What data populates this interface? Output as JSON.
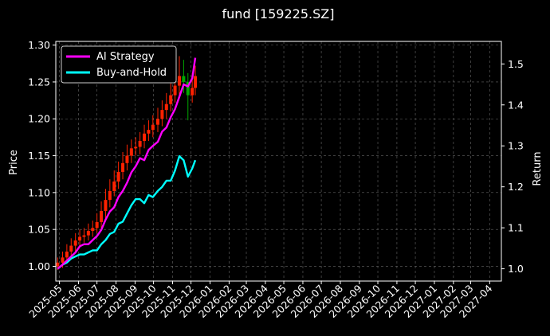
{
  "chart_data": {
    "type": "line",
    "title": "fund [159225.SZ]",
    "xlabel": "",
    "ylabel_left": "Price",
    "ylabel_right": "Return",
    "x_ticks": [
      "2025-05",
      "2025-06",
      "2025-07",
      "2025-08",
      "2025-09",
      "2025-10",
      "2025-11",
      "2025-12",
      "2026-01",
      "2026-02",
      "2026-03",
      "2026-04",
      "2026-05",
      "2026-06",
      "2026-07",
      "2026-08",
      "2026-09",
      "2026-10",
      "2026-11",
      "2026-12",
      "2027-01",
      "2027-02",
      "2027-03",
      "2027-04"
    ],
    "x_range": [
      "2025-04-25",
      "2027-04-20"
    ],
    "y_left": {
      "ticks": [
        1.0,
        1.05,
        1.1,
        1.15,
        1.2,
        1.25,
        1.3
      ],
      "range": [
        0.98,
        1.305
      ]
    },
    "y_right": {
      "ticks": [
        1.0,
        1.1,
        1.2,
        1.3,
        1.4,
        1.5
      ],
      "range": [
        0.97,
        1.555
      ]
    },
    "grid": true,
    "legend": {
      "placement": "top-left",
      "entries": [
        "AI Strategy",
        "Buy-and-Hold"
      ]
    },
    "colors": {
      "ai": "#ff00ff",
      "bh": "#00ffff",
      "up": "#ff2200",
      "down": "#00aa00",
      "grid": "#666666"
    },
    "series": [
      {
        "name": "AI Strategy",
        "axis": "right",
        "x": [
          "2025-04-28",
          "2025-05-06",
          "2025-05-13",
          "2025-05-20",
          "2025-05-27",
          "2025-06-03",
          "2025-06-10",
          "2025-06-17",
          "2025-06-24",
          "2025-07-01",
          "2025-07-08",
          "2025-07-15",
          "2025-07-22",
          "2025-07-29",
          "2025-08-05",
          "2025-08-12",
          "2025-08-19",
          "2025-08-26",
          "2025-09-02",
          "2025-09-09",
          "2025-09-16",
          "2025-09-23",
          "2025-09-30",
          "2025-10-08",
          "2025-10-15",
          "2025-10-22",
          "2025-10-29",
          "2025-11-05",
          "2025-11-12",
          "2025-11-19",
          "2025-11-26",
          "2025-12-03",
          "2025-12-08"
        ],
        "y": [
          1.0,
          1.01,
          1.02,
          1.03,
          1.04,
          1.055,
          1.06,
          1.06,
          1.07,
          1.08,
          1.095,
          1.12,
          1.14,
          1.15,
          1.175,
          1.19,
          1.21,
          1.235,
          1.25,
          1.27,
          1.265,
          1.29,
          1.3,
          1.31,
          1.335,
          1.345,
          1.37,
          1.39,
          1.42,
          1.45,
          1.445,
          1.465,
          1.515
        ]
      },
      {
        "name": "Buy-and-Hold",
        "axis": "right",
        "x": [
          "2025-04-28",
          "2025-05-06",
          "2025-05-13",
          "2025-05-20",
          "2025-05-27",
          "2025-06-03",
          "2025-06-10",
          "2025-06-17",
          "2025-06-24",
          "2025-07-01",
          "2025-07-08",
          "2025-07-15",
          "2025-07-22",
          "2025-07-29",
          "2025-08-05",
          "2025-08-12",
          "2025-08-19",
          "2025-08-26",
          "2025-09-02",
          "2025-09-09",
          "2025-09-16",
          "2025-09-23",
          "2025-09-30",
          "2025-10-08",
          "2025-10-15",
          "2025-10-22",
          "2025-10-29",
          "2025-11-05",
          "2025-11-12",
          "2025-11-19",
          "2025-11-26",
          "2025-12-03",
          "2025-12-08"
        ],
        "y": [
          1.0,
          1.01,
          1.015,
          1.025,
          1.03,
          1.035,
          1.035,
          1.04,
          1.045,
          1.045,
          1.06,
          1.07,
          1.085,
          1.09,
          1.11,
          1.115,
          1.135,
          1.155,
          1.17,
          1.17,
          1.16,
          1.18,
          1.175,
          1.19,
          1.2,
          1.215,
          1.215,
          1.24,
          1.275,
          1.265,
          1.225,
          1.245,
          1.265
        ]
      },
      {
        "name": "",
        "type": "candlestick",
        "axis": "left",
        "x": [
          "2025-04-28",
          "2025-05-06",
          "2025-05-13",
          "2025-05-20",
          "2025-05-27",
          "2025-06-03",
          "2025-06-10",
          "2025-06-17",
          "2025-06-24",
          "2025-07-01",
          "2025-07-08",
          "2025-07-15",
          "2025-07-22",
          "2025-07-29",
          "2025-08-05",
          "2025-08-12",
          "2025-08-19",
          "2025-08-26",
          "2025-09-02",
          "2025-09-09",
          "2025-09-16",
          "2025-09-23",
          "2025-09-30",
          "2025-10-08",
          "2025-10-15",
          "2025-10-22",
          "2025-10-29",
          "2025-11-05",
          "2025-11-12",
          "2025-11-19",
          "2025-11-26",
          "2025-12-03",
          "2025-12-08"
        ],
        "open": [
          1.0,
          1.005,
          1.012,
          1.02,
          1.028,
          1.035,
          1.04,
          1.042,
          1.048,
          1.052,
          1.06,
          1.075,
          1.09,
          1.102,
          1.115,
          1.128,
          1.14,
          1.15,
          1.16,
          1.162,
          1.17,
          1.18,
          1.185,
          1.192,
          1.2,
          1.212,
          1.22,
          1.232,
          1.245,
          1.258,
          1.25,
          1.232,
          1.242
        ],
        "close": [
          1.005,
          1.012,
          1.02,
          1.028,
          1.035,
          1.04,
          1.042,
          1.048,
          1.052,
          1.06,
          1.075,
          1.09,
          1.102,
          1.115,
          1.128,
          1.14,
          1.15,
          1.16,
          1.162,
          1.17,
          1.18,
          1.185,
          1.192,
          1.2,
          1.212,
          1.22,
          1.232,
          1.245,
          1.258,
          1.25,
          1.232,
          1.242,
          1.258
        ],
        "high": [
          1.012,
          1.02,
          1.03,
          1.038,
          1.045,
          1.05,
          1.052,
          1.058,
          1.062,
          1.072,
          1.088,
          1.105,
          1.118,
          1.13,
          1.142,
          1.155,
          1.165,
          1.172,
          1.175,
          1.182,
          1.192,
          1.198,
          1.205,
          1.215,
          1.225,
          1.235,
          1.248,
          1.262,
          1.285,
          1.28,
          1.262,
          1.262,
          1.272
        ],
        "low": [
          0.995,
          0.998,
          1.005,
          1.012,
          1.02,
          1.028,
          1.032,
          1.035,
          1.04,
          1.045,
          1.052,
          1.065,
          1.08,
          1.095,
          1.105,
          1.118,
          1.13,
          1.14,
          1.15,
          1.152,
          1.16,
          1.17,
          1.175,
          1.182,
          1.19,
          1.2,
          1.21,
          1.222,
          1.232,
          1.235,
          1.198,
          1.222,
          1.232
        ]
      }
    ]
  }
}
